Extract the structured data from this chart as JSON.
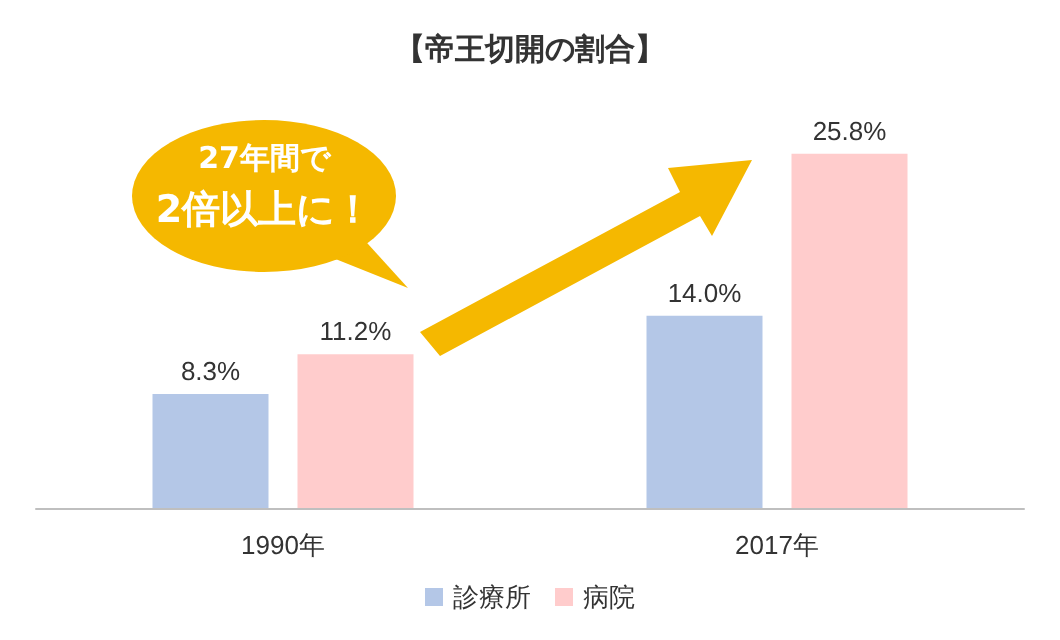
{
  "chart_data": {
    "type": "bar",
    "title": "【帝王切開の割合】",
    "categories": [
      "1990年",
      "2017年"
    ],
    "series": [
      {
        "name": "診療所",
        "color": "#b4c7e7",
        "values": [
          8.3,
          14.0
        ],
        "value_labels": [
          "8.3%",
          "14.0%"
        ]
      },
      {
        "name": "病院",
        "color": "#ffcccc",
        "values": [
          11.2,
          25.8
        ],
        "value_labels": [
          "11.2%",
          "25.8%"
        ]
      }
    ],
    "legend": "bottom",
    "annotations": [
      "27年間で\n2倍以上に！"
    ]
  }
}
